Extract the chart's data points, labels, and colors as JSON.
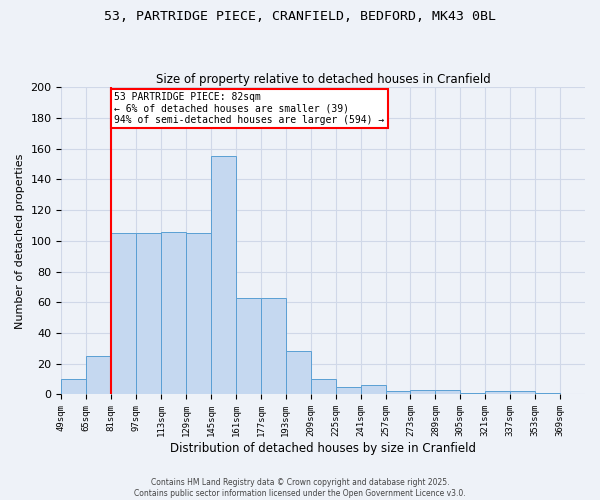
{
  "title": "53, PARTRIDGE PIECE, CRANFIELD, BEDFORD, MK43 0BL",
  "subtitle": "Size of property relative to detached houses in Cranfield",
  "xlabel": "Distribution of detached houses by size in Cranfield",
  "ylabel": "Number of detached properties",
  "bin_labels": [
    "49sqm",
    "65sqm",
    "81sqm",
    "97sqm",
    "113sqm",
    "129sqm",
    "145sqm",
    "161sqm",
    "177sqm",
    "193sqm",
    "209sqm",
    "225sqm",
    "241sqm",
    "257sqm",
    "273sqm",
    "289sqm",
    "305sqm",
    "321sqm",
    "337sqm",
    "353sqm",
    "369sqm"
  ],
  "bin_edges": [
    49,
    65,
    81,
    97,
    113,
    129,
    145,
    161,
    177,
    193,
    209,
    225,
    241,
    257,
    273,
    289,
    305,
    321,
    337,
    353,
    369
  ],
  "bar_heights": [
    10,
    25,
    105,
    105,
    106,
    105,
    155,
    63,
    63,
    28,
    10,
    5,
    6,
    2,
    3,
    3,
    1,
    2,
    2,
    1
  ],
  "bar_color": "#c5d8f0",
  "bar_edgecolor": "#5a9fd4",
  "red_line_x": 81,
  "annotation_text": "53 PARTRIDGE PIECE: 82sqm\n← 6% of detached houses are smaller (39)\n94% of semi-detached houses are larger (594) →",
  "annotation_box_color": "white",
  "annotation_box_edgecolor": "red",
  "ylim": [
    0,
    200
  ],
  "yticks": [
    0,
    20,
    40,
    60,
    80,
    100,
    120,
    140,
    160,
    180,
    200
  ],
  "background_color": "#eef2f8",
  "grid_color": "#d0d8e8",
  "footer_line1": "Contains HM Land Registry data © Crown copyright and database right 2025.",
  "footer_line2": "Contains public sector information licensed under the Open Government Licence v3.0."
}
